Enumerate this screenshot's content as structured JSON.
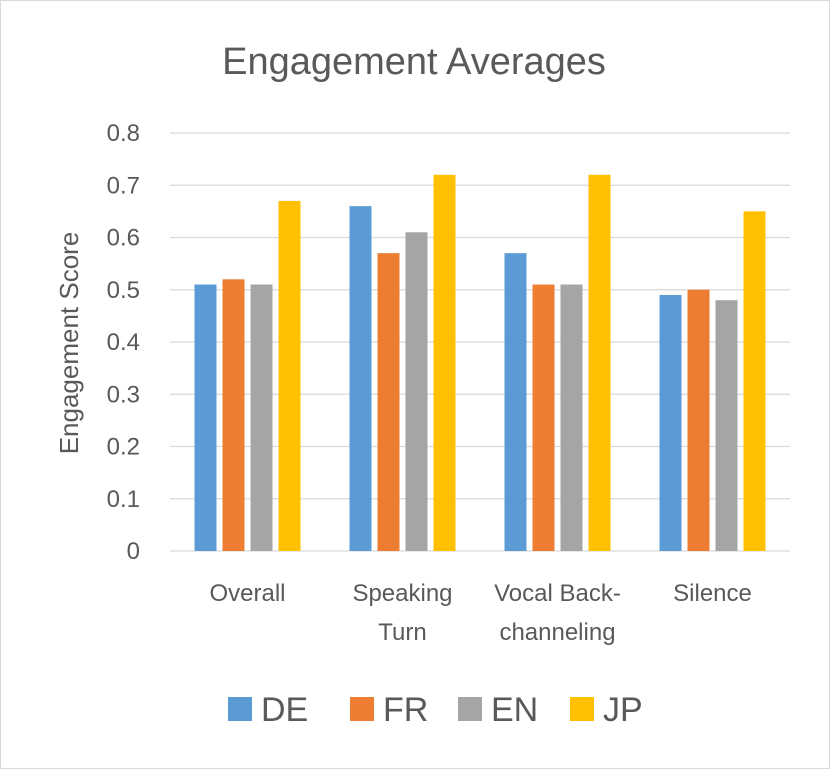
{
  "chart_data": {
    "type": "bar",
    "title": "Engagement Averages",
    "xlabel": "",
    "ylabel": "Engagement Score",
    "ylim": [
      0,
      0.8
    ],
    "yticks": [
      "0",
      "0.1",
      "0.2",
      "0.3",
      "0.4",
      "0.5",
      "0.6",
      "0.7",
      "0.8"
    ],
    "categories": [
      [
        "Overall"
      ],
      [
        "Speaking",
        "Turn"
      ],
      [
        "Vocal Back-",
        "channeling"
      ],
      [
        "Silence"
      ]
    ],
    "series": [
      {
        "name": "DE",
        "color": "#5b9bd5",
        "values": [
          0.51,
          0.66,
          0.57,
          0.49
        ]
      },
      {
        "name": "FR",
        "color": "#ed7d31",
        "values": [
          0.52,
          0.57,
          0.51,
          0.5
        ]
      },
      {
        "name": "EN",
        "color": "#a5a5a5",
        "values": [
          0.51,
          0.61,
          0.51,
          0.48
        ]
      },
      {
        "name": "JP",
        "color": "#ffc000",
        "values": [
          0.67,
          0.72,
          0.72,
          0.65
        ]
      }
    ],
    "grid": true,
    "legend_position": "bottom"
  }
}
